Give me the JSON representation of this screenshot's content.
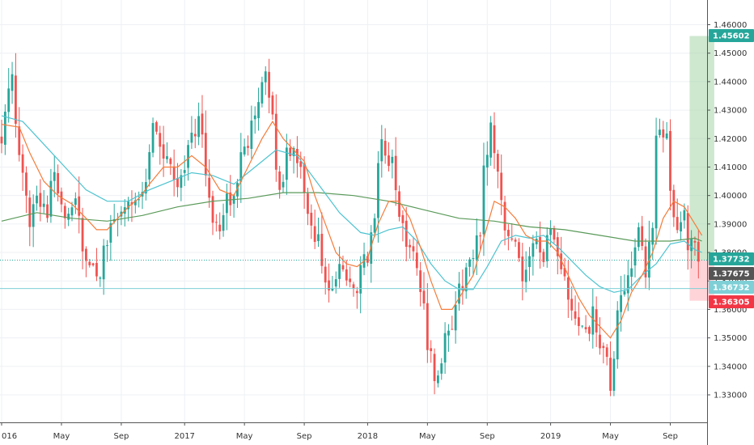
{
  "chart_data": {
    "type": "candlestick",
    "colors": {
      "up": "#26a69a",
      "down": "#ef5350",
      "ema_short": "#f57c3a",
      "ema_mid": "#4dc3d0",
      "sma_long": "#5a9a5a",
      "target_zone": "#a5d6a7",
      "stop_zone": "#ffcdd2",
      "grid": "#eef0f4",
      "axis_text": "#333333"
    },
    "y_axis": {
      "ylim": [
        1.3235,
        1.4635
      ],
      "ticks": [
        "1.33000",
        "1.34000",
        "1.35000",
        "1.36000",
        "1.37000",
        "1.38000",
        "1.39000",
        "1.40000",
        "1.41000",
        "1.42000",
        "1.43000",
        "1.44000",
        "1.45000",
        "1.46000"
      ],
      "tick_values": [
        1.33,
        1.34,
        1.35,
        1.36,
        1.37,
        1.38,
        1.39,
        1.4,
        1.41,
        1.42,
        1.43,
        1.44,
        1.45,
        1.46
      ]
    },
    "x_axis": {
      "labels": [
        "016",
        "May",
        "Sep",
        "2017",
        "May",
        "Sep",
        "2018",
        "May",
        "Sep",
        "2019",
        "May",
        "Sep"
      ],
      "label_weeks": [
        0,
        17,
        34,
        52,
        69,
        86,
        104,
        121,
        138,
        156,
        173,
        190
      ]
    },
    "price_badges": [
      {
        "label": "1.45602",
        "value": 1.45602,
        "color": "#26a69a"
      },
      {
        "label": "1.37732",
        "value": 1.37732,
        "color": "#26a69a"
      },
      {
        "label": "1.37675",
        "value": 1.37675,
        "color": "#555555"
      },
      {
        "label": "1.36732",
        "value": 1.36732,
        "color": "#7ecfd6"
      },
      {
        "label": "1.36305",
        "value": 1.36305,
        "color": "#f23645"
      }
    ],
    "position": {
      "entry": 1.37732,
      "target": 1.45602,
      "stop": 1.36305,
      "start_week": 195.5,
      "end_week": 202.5
    },
    "horizontal_lines": [
      1.37732,
      1.36732
    ],
    "anchors": [
      [
        0,
        1.422
      ],
      [
        3,
        1.44
      ],
      [
        5,
        1.412
      ],
      [
        8,
        1.392
      ],
      [
        10,
        1.402
      ],
      [
        13,
        1.395
      ],
      [
        15,
        1.408
      ],
      [
        18,
        1.394
      ],
      [
        21,
        1.4
      ],
      [
        24,
        1.375
      ],
      [
        26,
        1.372
      ],
      [
        28,
        1.372
      ],
      [
        31,
        1.392
      ],
      [
        33,
        1.388
      ],
      [
        35,
        1.398
      ],
      [
        37,
        1.4
      ],
      [
        39,
        1.398
      ],
      [
        41,
        1.407
      ],
      [
        43,
        1.425
      ],
      [
        45,
        1.418
      ],
      [
        47,
        1.412
      ],
      [
        50,
        1.404
      ],
      [
        52,
        1.412
      ],
      [
        54,
        1.42
      ],
      [
        56,
        1.428
      ],
      [
        58,
        1.408
      ],
      [
        60,
        1.393
      ],
      [
        62,
        1.39
      ],
      [
        64,
        1.397
      ],
      [
        66,
        1.398
      ],
      [
        68,
        1.418
      ],
      [
        70,
        1.42
      ],
      [
        72,
        1.426
      ],
      [
        74,
        1.436
      ],
      [
        75,
        1.44
      ],
      [
        77,
        1.428
      ],
      [
        79,
        1.398
      ],
      [
        81,
        1.415
      ],
      [
        83,
        1.418
      ],
      [
        85,
        1.41
      ],
      [
        87,
        1.396
      ],
      [
        89,
        1.382
      ],
      [
        90,
        1.383
      ],
      [
        92,
        1.369
      ],
      [
        94,
        1.366
      ],
      [
        96,
        1.372
      ],
      [
        98,
        1.372
      ],
      [
        100,
        1.365
      ],
      [
        102,
        1.373
      ],
      [
        104,
        1.378
      ],
      [
        106,
        1.396
      ],
      [
        108,
        1.42
      ],
      [
        109,
        1.416
      ],
      [
        111,
        1.41
      ],
      [
        113,
        1.393
      ],
      [
        115,
        1.385
      ],
      [
        117,
        1.382
      ],
      [
        119,
        1.37
      ],
      [
        121,
        1.348
      ],
      [
        123,
        1.338
      ],
      [
        124,
        1.335
      ],
      [
        126,
        1.348
      ],
      [
        128,
        1.356
      ],
      [
        130,
        1.366
      ],
      [
        132,
        1.374
      ],
      [
        134,
        1.378
      ],
      [
        136,
        1.388
      ],
      [
        137,
        1.41
      ],
      [
        139,
        1.424
      ],
      [
        140,
        1.418
      ],
      [
        142,
        1.398
      ],
      [
        144,
        1.384
      ],
      [
        146,
        1.383
      ],
      [
        148,
        1.372
      ],
      [
        150,
        1.382
      ],
      [
        152,
        1.386
      ],
      [
        154,
        1.378
      ],
      [
        156,
        1.388
      ],
      [
        158,
        1.376
      ],
      [
        160,
        1.37
      ],
      [
        162,
        1.36
      ],
      [
        164,
        1.352
      ],
      [
        166,
        1.35
      ],
      [
        168,
        1.358
      ],
      [
        170,
        1.346
      ],
      [
        172,
        1.34
      ],
      [
        173,
        1.333
      ],
      [
        174,
        1.343
      ],
      [
        175,
        1.356
      ],
      [
        177,
        1.368
      ],
      [
        179,
        1.378
      ],
      [
        181,
        1.386
      ],
      [
        183,
        1.372
      ],
      [
        185,
        1.388
      ],
      [
        186,
        1.422
      ],
      [
        188,
        1.424
      ],
      [
        189,
        1.418
      ],
      [
        190,
        1.4
      ],
      [
        192,
        1.39
      ],
      [
        194,
        1.394
      ],
      [
        195,
        1.384
      ],
      [
        196,
        1.382
      ],
      [
        197,
        1.38
      ],
      [
        198,
        1.3768
      ]
    ],
    "ema_short": [
      [
        0,
        1.425
      ],
      [
        5,
        1.424
      ],
      [
        8,
        1.415
      ],
      [
        12,
        1.405
      ],
      [
        16,
        1.4
      ],
      [
        20,
        1.397
      ],
      [
        24,
        1.392
      ],
      [
        27,
        1.388
      ],
      [
        30,
        1.388
      ],
      [
        33,
        1.392
      ],
      [
        36,
        1.396
      ],
      [
        39,
        1.399
      ],
      [
        42,
        1.404
      ],
      [
        46,
        1.41
      ],
      [
        50,
        1.41
      ],
      [
        54,
        1.414
      ],
      [
        58,
        1.41
      ],
      [
        62,
        1.402
      ],
      [
        66,
        1.4
      ],
      [
        70,
        1.41
      ],
      [
        74,
        1.42
      ],
      [
        77,
        1.426
      ],
      [
        80,
        1.42
      ],
      [
        83,
        1.416
      ],
      [
        86,
        1.412
      ],
      [
        89,
        1.4
      ],
      [
        92,
        1.39
      ],
      [
        95,
        1.38
      ],
      [
        98,
        1.376
      ],
      [
        101,
        1.375
      ],
      [
        104,
        1.378
      ],
      [
        107,
        1.39
      ],
      [
        110,
        1.398
      ],
      [
        113,
        1.398
      ],
      [
        116,
        1.392
      ],
      [
        119,
        1.382
      ],
      [
        122,
        1.37
      ],
      [
        125,
        1.36
      ],
      [
        128,
        1.36
      ],
      [
        131,
        1.366
      ],
      [
        134,
        1.372
      ],
      [
        137,
        1.385
      ],
      [
        140,
        1.398
      ],
      [
        143,
        1.396
      ],
      [
        146,
        1.392
      ],
      [
        149,
        1.386
      ],
      [
        152,
        1.384
      ],
      [
        155,
        1.384
      ],
      [
        158,
        1.38
      ],
      [
        161,
        1.372
      ],
      [
        164,
        1.364
      ],
      [
        167,
        1.358
      ],
      [
        170,
        1.354
      ],
      [
        173,
        1.35
      ],
      [
        176,
        1.356
      ],
      [
        179,
        1.366
      ],
      [
        182,
        1.372
      ],
      [
        185,
        1.38
      ],
      [
        188,
        1.392
      ],
      [
        191,
        1.398
      ],
      [
        194,
        1.396
      ],
      [
        197,
        1.39
      ],
      [
        199,
        1.386
      ]
    ],
    "ema_mid": [
      [
        0,
        1.428
      ],
      [
        6,
        1.426
      ],
      [
        12,
        1.418
      ],
      [
        18,
        1.41
      ],
      [
        24,
        1.402
      ],
      [
        30,
        1.398
      ],
      [
        36,
        1.398
      ],
      [
        42,
        1.402
      ],
      [
        48,
        1.405
      ],
      [
        54,
        1.408
      ],
      [
        60,
        1.407
      ],
      [
        66,
        1.404
      ],
      [
        72,
        1.41
      ],
      [
        78,
        1.416
      ],
      [
        84,
        1.414
      ],
      [
        90,
        1.404
      ],
      [
        96,
        1.394
      ],
      [
        102,
        1.387
      ],
      [
        106,
        1.386
      ],
      [
        110,
        1.388
      ],
      [
        114,
        1.389
      ],
      [
        118,
        1.384
      ],
      [
        122,
        1.376
      ],
      [
        126,
        1.37
      ],
      [
        130,
        1.367
      ],
      [
        134,
        1.367
      ],
      [
        138,
        1.375
      ],
      [
        142,
        1.384
      ],
      [
        146,
        1.386
      ],
      [
        150,
        1.385
      ],
      [
        154,
        1.386
      ],
      [
        158,
        1.382
      ],
      [
        162,
        1.377
      ],
      [
        166,
        1.372
      ],
      [
        170,
        1.368
      ],
      [
        174,
        1.366
      ],
      [
        178,
        1.367
      ],
      [
        182,
        1.372
      ],
      [
        186,
        1.376
      ],
      [
        190,
        1.383
      ],
      [
        194,
        1.384
      ],
      [
        197,
        1.381
      ],
      [
        199,
        1.38
      ]
    ],
    "sma_long": [
      [
        0,
        1.391
      ],
      [
        10,
        1.394
      ],
      [
        20,
        1.392
      ],
      [
        30,
        1.391
      ],
      [
        40,
        1.393
      ],
      [
        50,
        1.396
      ],
      [
        60,
        1.398
      ],
      [
        70,
        1.399
      ],
      [
        80,
        1.401
      ],
      [
        90,
        1.401
      ],
      [
        100,
        1.4
      ],
      [
        110,
        1.398
      ],
      [
        120,
        1.395
      ],
      [
        130,
        1.392
      ],
      [
        140,
        1.391
      ],
      [
        150,
        1.389
      ],
      [
        160,
        1.388
      ],
      [
        170,
        1.386
      ],
      [
        180,
        1.384
      ],
      [
        190,
        1.384
      ],
      [
        197,
        1.385
      ],
      [
        199,
        1.384
      ]
    ]
  }
}
